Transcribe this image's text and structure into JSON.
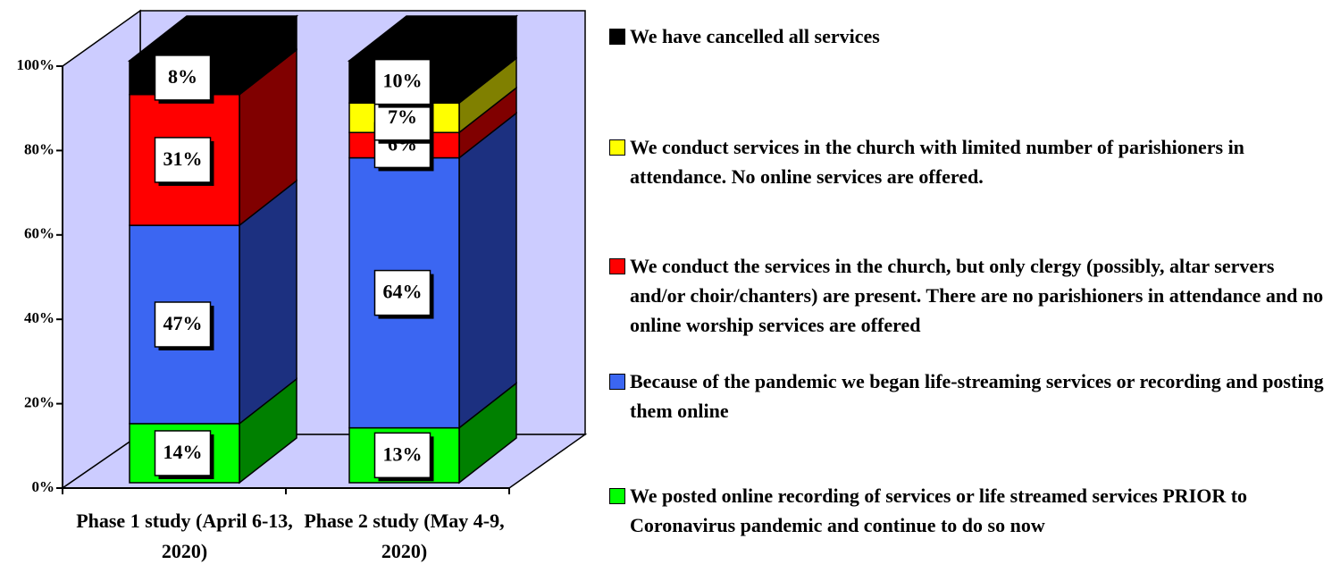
{
  "chart_data": {
    "type": "bar",
    "stacked": true,
    "three_d": true,
    "categories": [
      "Phase 1 study (April 6-13, 2020)",
      "Phase 2 study (May 4-9, 2020)"
    ],
    "series": [
      {
        "name": "We posted online recording of services or life streamed services PRIOR to Coronavirus pandemic and continue to do so now",
        "color": "#00ff00",
        "side_color": "#008000",
        "values": [
          14,
          13
        ],
        "value_labels": [
          "14%",
          "13%"
        ]
      },
      {
        "name": "Because of the pandemic we began life-streaming services or recording and posting them online",
        "color": "#3b66f2",
        "side_color": "#1c3080",
        "values": [
          47,
          64
        ],
        "value_labels": [
          "47%",
          "64%"
        ]
      },
      {
        "name": "We conduct the services in the church, but only clergy (possibly, altar servers and/or choir/chanters) are present. There are no parishioners in attendance and no online worship services are offered",
        "color": "#ff0000",
        "side_color": "#800000",
        "values": [
          31,
          6
        ],
        "value_labels": [
          "31%",
          "6%"
        ]
      },
      {
        "name": "We conduct services in the church with limited number of parishioners in attendance. No online services are offered.",
        "color": "#ffff00",
        "side_color": "#808000",
        "values": [
          0,
          7
        ],
        "value_labels": [
          null,
          "7%"
        ]
      },
      {
        "name": "We have cancelled all services",
        "color": "#000000",
        "side_color": "#000000",
        "values": [
          8,
          10
        ],
        "value_labels": [
          "8%",
          "10%"
        ]
      }
    ],
    "ylim": [
      0,
      100
    ],
    "yticks": [
      {
        "value": 0,
        "label": "0%"
      },
      {
        "value": 20,
        "label": "20%"
      },
      {
        "value": 40,
        "label": "40%"
      },
      {
        "value": 60,
        "label": "60%"
      },
      {
        "value": 80,
        "label": "80%"
      },
      {
        "value": 100,
        "label": "100%"
      }
    ],
    "wall_color": "#ccccff",
    "legend": "right"
  }
}
